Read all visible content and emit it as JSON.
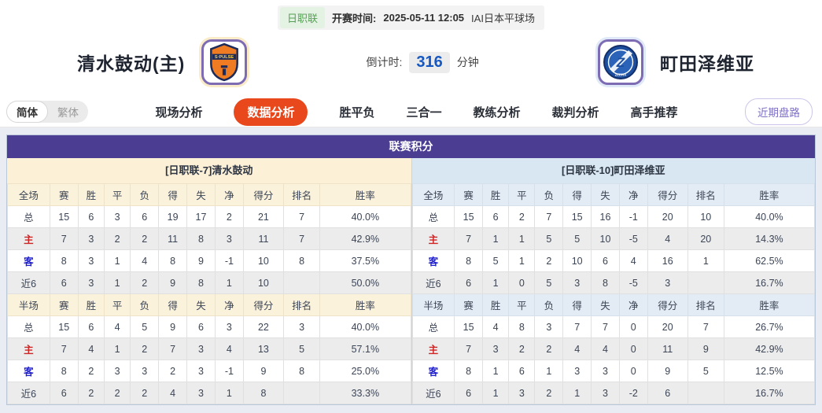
{
  "colors": {
    "header_purple": "#4b3d92",
    "active_tab_red": "#e8481c",
    "countdown_blue": "#1758c0",
    "league_badge_green": "#55a055",
    "home_header_cream": "#fcf0d6",
    "away_header_blue": "#d9e7f3",
    "home_row_label_red": "#cf2525",
    "away_row_label_blue": "#1f1fd0",
    "alt_row_gray": "#ececec",
    "page_panel_bg": "#e9edf3"
  },
  "top_bar": {
    "league_badge": "日职联",
    "kickoff_label": "开赛时间:",
    "kickoff_time": "2025-05-11 12:05",
    "venue": "IAI日本平球场"
  },
  "match_header": {
    "home_team": "清水鼓动(主)",
    "away_team": "町田泽维亚",
    "home_logo_icon": "s-pulse-shield",
    "away_logo_icon": "zelvia-circle",
    "countdown_label": "倒计时:",
    "countdown_value": "316",
    "countdown_unit": "分钟"
  },
  "tab_bar": {
    "lang_toggle": [
      {
        "name": "simplified",
        "label": "简体",
        "active": true
      },
      {
        "name": "traditional",
        "label": "繁体",
        "active": false
      }
    ],
    "tabs": [
      {
        "name": "live-analysis",
        "label": "现场分析",
        "active": false
      },
      {
        "name": "data-analysis",
        "label": "数据分析",
        "active": true
      },
      {
        "name": "win-draw-lose",
        "label": "胜平负",
        "active": false
      },
      {
        "name": "three-in-one",
        "label": "三合一",
        "active": false
      },
      {
        "name": "coach-analysis",
        "label": "教练分析",
        "active": false
      },
      {
        "name": "referee-analysis",
        "label": "裁判分析",
        "active": false
      },
      {
        "name": "expert-picks",
        "label": "高手推荐",
        "active": false
      }
    ],
    "right_pill": "近期盘路"
  },
  "league_table": {
    "title": "联赛积分",
    "left": {
      "team_header": "[日职联-7]清水鼓动",
      "sections": [
        {
          "scope_label": "全场",
          "columns": [
            "赛",
            "胜",
            "平",
            "负",
            "得",
            "失",
            "净",
            "得分",
            "排名",
            "胜率"
          ],
          "rows": [
            {
              "label": "总",
              "values": [
                "15",
                "6",
                "3",
                "6",
                "19",
                "17",
                "2",
                "21",
                "7",
                "40.0%"
              ]
            },
            {
              "label": "主",
              "values": [
                "7",
                "3",
                "2",
                "2",
                "11",
                "8",
                "3",
                "11",
                "7",
                "42.9%"
              ]
            },
            {
              "label": "客",
              "values": [
                "8",
                "3",
                "1",
                "4",
                "8",
                "9",
                "-1",
                "10",
                "8",
                "37.5%"
              ]
            },
            {
              "label": "近6",
              "values": [
                "6",
                "3",
                "1",
                "2",
                "9",
                "8",
                "1",
                "10",
                "",
                "50.0%"
              ]
            }
          ]
        },
        {
          "scope_label": "半场",
          "columns": [
            "赛",
            "胜",
            "平",
            "负",
            "得",
            "失",
            "净",
            "得分",
            "排名",
            "胜率"
          ],
          "rows": [
            {
              "label": "总",
              "values": [
                "15",
                "6",
                "4",
                "5",
                "9",
                "6",
                "3",
                "22",
                "3",
                "40.0%"
              ]
            },
            {
              "label": "主",
              "values": [
                "7",
                "4",
                "1",
                "2",
                "7",
                "3",
                "4",
                "13",
                "5",
                "57.1%"
              ]
            },
            {
              "label": "客",
              "values": [
                "8",
                "2",
                "3",
                "3",
                "2",
                "3",
                "-1",
                "9",
                "8",
                "25.0%"
              ]
            },
            {
              "label": "近6",
              "values": [
                "6",
                "2",
                "2",
                "2",
                "4",
                "3",
                "1",
                "8",
                "",
                "33.3%"
              ]
            }
          ]
        }
      ]
    },
    "right": {
      "team_header": "[日职联-10]町田泽维亚",
      "sections": [
        {
          "scope_label": "全场",
          "columns": [
            "赛",
            "胜",
            "平",
            "负",
            "得",
            "失",
            "净",
            "得分",
            "排名",
            "胜率"
          ],
          "rows": [
            {
              "label": "总",
              "values": [
                "15",
                "6",
                "2",
                "7",
                "15",
                "16",
                "-1",
                "20",
                "10",
                "40.0%"
              ]
            },
            {
              "label": "主",
              "values": [
                "7",
                "1",
                "1",
                "5",
                "5",
                "10",
                "-5",
                "4",
                "20",
                "14.3%"
              ]
            },
            {
              "label": "客",
              "values": [
                "8",
                "5",
                "1",
                "2",
                "10",
                "6",
                "4",
                "16",
                "1",
                "62.5%"
              ]
            },
            {
              "label": "近6",
              "values": [
                "6",
                "1",
                "0",
                "5",
                "3",
                "8",
                "-5",
                "3",
                "",
                "16.7%"
              ]
            }
          ]
        },
        {
          "scope_label": "半场",
          "columns": [
            "赛",
            "胜",
            "平",
            "负",
            "得",
            "失",
            "净",
            "得分",
            "排名",
            "胜率"
          ],
          "rows": [
            {
              "label": "总",
              "values": [
                "15",
                "4",
                "8",
                "3",
                "7",
                "7",
                "0",
                "20",
                "7",
                "26.7%"
              ]
            },
            {
              "label": "主",
              "values": [
                "7",
                "3",
                "2",
                "2",
                "4",
                "4",
                "0",
                "11",
                "9",
                "42.9%"
              ]
            },
            {
              "label": "客",
              "values": [
                "8",
                "1",
                "6",
                "1",
                "3",
                "3",
                "0",
                "9",
                "5",
                "12.5%"
              ]
            },
            {
              "label": "近6",
              "values": [
                "6",
                "1",
                "3",
                "2",
                "1",
                "3",
                "-2",
                "6",
                "",
                "16.7%"
              ]
            }
          ]
        }
      ]
    }
  }
}
